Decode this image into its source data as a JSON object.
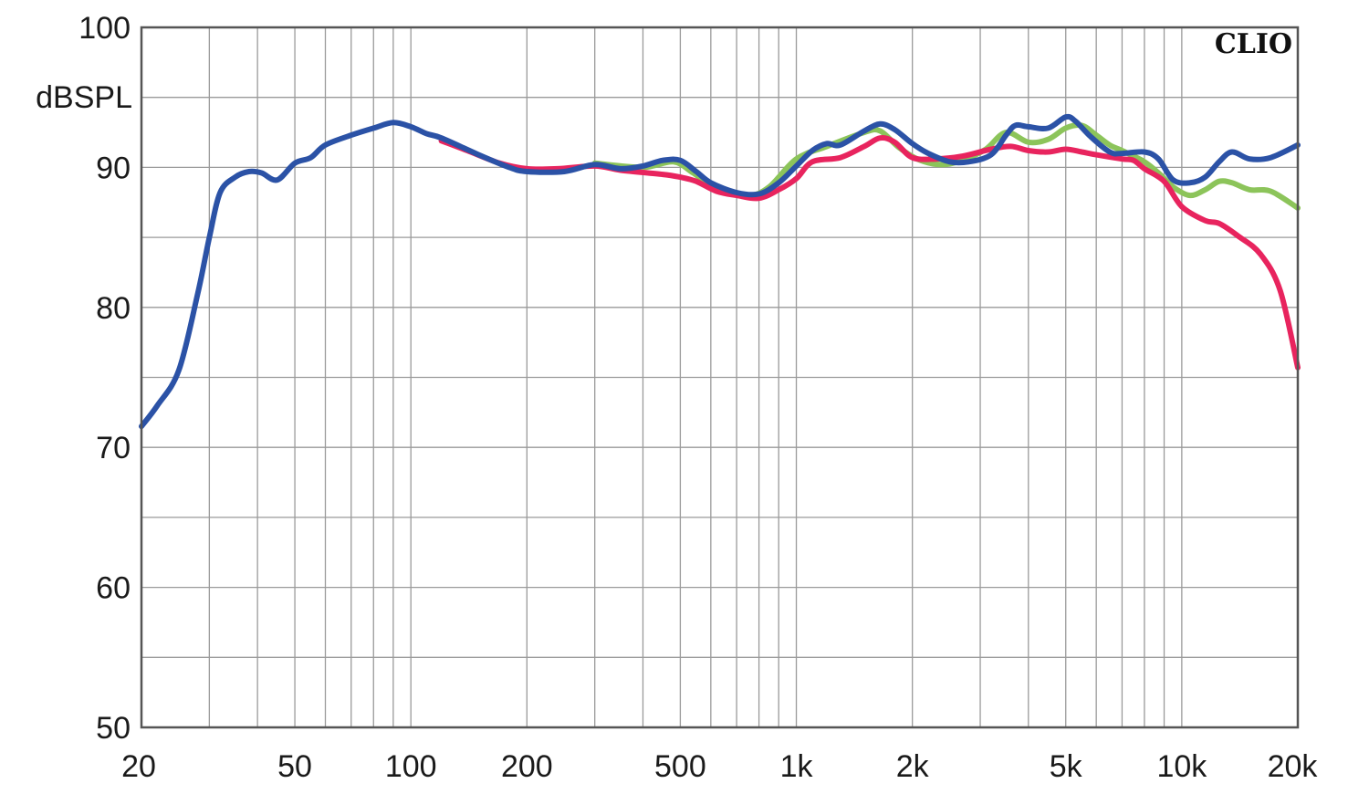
{
  "chart_data": {
    "type": "line",
    "x_scale": "log",
    "xlim": [
      20,
      20000
    ],
    "ylim": [
      50,
      100
    ],
    "grid": true,
    "ylabel": "dBSPL",
    "watermark": "CLIO",
    "x_ticks": [
      {
        "value": 20,
        "label": "20"
      },
      {
        "value": 50,
        "label": "50"
      },
      {
        "value": 100,
        "label": "100"
      },
      {
        "value": 200,
        "label": "200"
      },
      {
        "value": 500,
        "label": "500"
      },
      {
        "value": 1000,
        "label": "1k"
      },
      {
        "value": 2000,
        "label": "2k"
      },
      {
        "value": 5000,
        "label": "5k"
      },
      {
        "value": 10000,
        "label": "10k"
      },
      {
        "value": 20000,
        "label": "20k"
      }
    ],
    "y_ticks": [
      {
        "value": 100,
        "label": "100"
      },
      {
        "value": 90,
        "label": "90"
      },
      {
        "value": 80,
        "label": "80"
      },
      {
        "value": 70,
        "label": "70"
      },
      {
        "value": 60,
        "label": "60"
      },
      {
        "value": 50,
        "label": "50"
      }
    ],
    "series": [
      {
        "color": "#8cc45a",
        "points": [
          [
            300,
            90.3
          ],
          [
            400,
            90.0
          ],
          [
            480,
            90.4
          ],
          [
            540,
            89.6
          ],
          [
            620,
            88.5
          ],
          [
            750,
            88.0
          ],
          [
            850,
            88.6
          ],
          [
            1000,
            90.6
          ],
          [
            1200,
            91.5
          ],
          [
            1500,
            92.5
          ],
          [
            1650,
            92.6
          ],
          [
            1850,
            91.4
          ],
          [
            2100,
            90.5
          ],
          [
            2400,
            90.2
          ],
          [
            2700,
            90.5
          ],
          [
            3100,
            91.3
          ],
          [
            3500,
            92.5
          ],
          [
            4000,
            91.8
          ],
          [
            4500,
            92.0
          ],
          [
            5000,
            92.8
          ],
          [
            5500,
            93.0
          ],
          [
            6000,
            92.3
          ],
          [
            6500,
            91.6
          ],
          [
            7000,
            91.2
          ],
          [
            7500,
            90.8
          ],
          [
            8000,
            90.4
          ],
          [
            8700,
            89.6
          ],
          [
            9500,
            88.6
          ],
          [
            10500,
            88.0
          ],
          [
            11500,
            88.4
          ],
          [
            12500,
            89.0
          ],
          [
            13500,
            88.9
          ],
          [
            15000,
            88.4
          ],
          [
            17000,
            88.3
          ],
          [
            20000,
            87.1
          ]
        ]
      },
      {
        "color": "#e8245e",
        "points": [
          [
            120,
            91.9
          ],
          [
            140,
            91.2
          ],
          [
            170,
            90.3
          ],
          [
            200,
            89.9
          ],
          [
            240,
            89.9
          ],
          [
            300,
            90.1
          ],
          [
            350,
            89.8
          ],
          [
            450,
            89.5
          ],
          [
            500,
            89.3
          ],
          [
            550,
            89.0
          ],
          [
            620,
            88.3
          ],
          [
            700,
            88.0
          ],
          [
            800,
            87.8
          ],
          [
            900,
            88.4
          ],
          [
            1000,
            89.2
          ],
          [
            1100,
            90.4
          ],
          [
            1300,
            90.7
          ],
          [
            1500,
            91.5
          ],
          [
            1650,
            92.1
          ],
          [
            1800,
            91.8
          ],
          [
            2000,
            90.7
          ],
          [
            2300,
            90.6
          ],
          [
            2700,
            90.8
          ],
          [
            3200,
            91.3
          ],
          [
            3600,
            91.5
          ],
          [
            4000,
            91.2
          ],
          [
            4500,
            91.1
          ],
          [
            5000,
            91.3
          ],
          [
            5500,
            91.1
          ],
          [
            6000,
            90.9
          ],
          [
            7000,
            90.6
          ],
          [
            7500,
            90.5
          ],
          [
            8000,
            89.9
          ],
          [
            9000,
            89.0
          ],
          [
            10000,
            87.2
          ],
          [
            11500,
            86.2
          ],
          [
            12500,
            86.0
          ],
          [
            14000,
            85.1
          ],
          [
            16000,
            83.8
          ],
          [
            18000,
            81.2
          ],
          [
            20000,
            75.7
          ]
        ]
      },
      {
        "color": "#2b52a6",
        "points": [
          [
            20,
            71.5
          ],
          [
            22,
            73.0
          ],
          [
            25,
            75.5
          ],
          [
            28,
            81.0
          ],
          [
            30,
            85.0
          ],
          [
            32,
            88.2
          ],
          [
            35,
            89.3
          ],
          [
            38,
            89.7
          ],
          [
            41,
            89.6
          ],
          [
            45,
            89.1
          ],
          [
            50,
            90.3
          ],
          [
            55,
            90.7
          ],
          [
            60,
            91.6
          ],
          [
            70,
            92.3
          ],
          [
            80,
            92.8
          ],
          [
            90,
            93.2
          ],
          [
            100,
            92.9
          ],
          [
            110,
            92.4
          ],
          [
            120,
            92.1
          ],
          [
            150,
            90.9
          ],
          [
            180,
            90.0
          ],
          [
            200,
            89.7
          ],
          [
            250,
            89.7
          ],
          [
            300,
            90.2
          ],
          [
            350,
            89.9
          ],
          [
            400,
            90.1
          ],
          [
            450,
            90.5
          ],
          [
            500,
            90.5
          ],
          [
            550,
            89.7
          ],
          [
            600,
            88.9
          ],
          [
            700,
            88.2
          ],
          [
            800,
            88.1
          ],
          [
            900,
            88.9
          ],
          [
            1000,
            90.1
          ],
          [
            1100,
            91.2
          ],
          [
            1200,
            91.7
          ],
          [
            1300,
            91.6
          ],
          [
            1500,
            92.6
          ],
          [
            1650,
            93.1
          ],
          [
            1800,
            92.7
          ],
          [
            2000,
            91.7
          ],
          [
            2200,
            91.0
          ],
          [
            2500,
            90.4
          ],
          [
            2800,
            90.4
          ],
          [
            3200,
            90.9
          ],
          [
            3500,
            92.3
          ],
          [
            3700,
            93.0
          ],
          [
            4000,
            92.9
          ],
          [
            4500,
            92.8
          ],
          [
            5000,
            93.6
          ],
          [
            5300,
            93.3
          ],
          [
            5800,
            92.2
          ],
          [
            6500,
            91.1
          ],
          [
            7000,
            91.0
          ],
          [
            8000,
            91.1
          ],
          [
            8700,
            90.6
          ],
          [
            9500,
            89.1
          ],
          [
            10500,
            88.9
          ],
          [
            11500,
            89.3
          ],
          [
            12500,
            90.4
          ],
          [
            13500,
            91.1
          ],
          [
            15000,
            90.6
          ],
          [
            17000,
            90.7
          ],
          [
            20000,
            91.6
          ]
        ]
      }
    ]
  }
}
